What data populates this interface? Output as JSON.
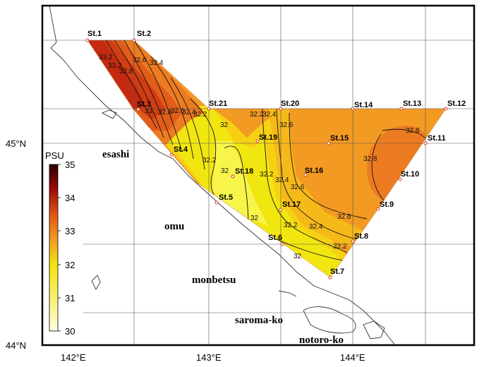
{
  "map": {
    "latitude_labels": [
      "45°N",
      "44°N"
    ],
    "longitude_labels": [
      "142°E",
      "143°E",
      "144°E"
    ],
    "place_names": {
      "esashi": "esashi",
      "omu": "omu",
      "monbetsu": "monbetsu",
      "saroma": "saroma-ko",
      "notoro": "notoro-ko"
    },
    "stations": [
      "St.1",
      "St.2",
      "St.3",
      "St.4",
      "St.5",
      "St.6",
      "St.7",
      "St.8",
      "St.9",
      "St.10",
      "St.11",
      "St.12",
      "St.13",
      "St.14",
      "St.15",
      "St.16",
      "St.17",
      "St.18",
      "St.19",
      "St.20",
      "St.21"
    ],
    "contour_values": [
      "32",
      "32.2",
      "32.4",
      "32.6",
      "32.8",
      "33",
      "33.2"
    ],
    "colorbar": {
      "unit": "PSU",
      "ticks": [
        "35",
        "34",
        "33",
        "32",
        "31",
        "30"
      ],
      "colors": {
        "low": "#ffffe6",
        "mid_low": "#f2e20f",
        "mid": "#f29a22",
        "mid_high": "#e05513",
        "high": "#9e0b06",
        "top": "#2a0000"
      }
    },
    "colors": {
      "land_outline": "#333333",
      "grid": "#555555",
      "frame": "#000000",
      "station_marker": "#d43c2f",
      "zone_32_0": "#f2e611",
      "zone_32_2": "#f7d014",
      "zone_32_4": "#f6b91a",
      "zone_32_6": "#f39a23",
      "zone_32_8": "#ec7b21",
      "zone_33_0": "#e25c1a",
      "zone_33_2": "#d23d12",
      "zone_high": "#c42a10",
      "zone_low": "#f7f44a"
    }
  }
}
